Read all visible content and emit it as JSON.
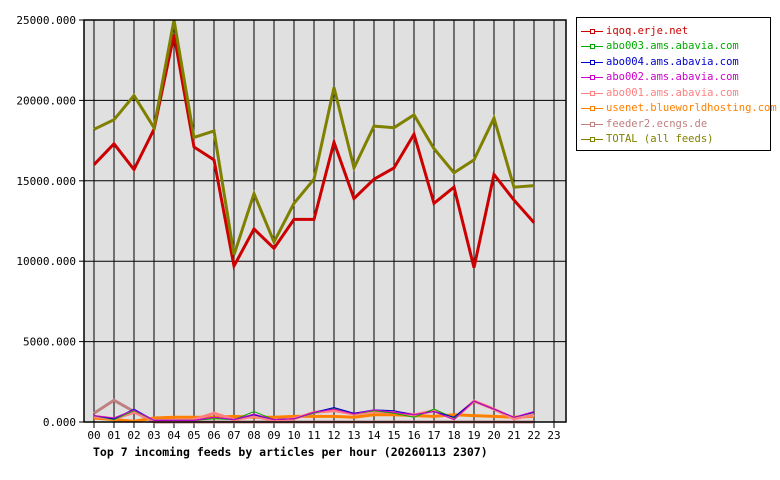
{
  "chart_data": {
    "type": "line",
    "title": "Top 7 incoming feeds by articles per hour (20260113 2307)",
    "xlabel": "",
    "ylabel": "",
    "ylim": [
      0,
      25000
    ],
    "yticks": [
      "0.000",
      "5000.000",
      "10000.000",
      "15000.000",
      "20000.000",
      "25000.000"
    ],
    "ytick_values": [
      0,
      5000,
      10000,
      15000,
      20000,
      25000
    ],
    "categories": [
      "00",
      "01",
      "02",
      "03",
      "04",
      "05",
      "06",
      "07",
      "08",
      "09",
      "10",
      "11",
      "12",
      "13",
      "14",
      "15",
      "16",
      "17",
      "18",
      "19",
      "20",
      "21",
      "22",
      "23"
    ],
    "grid": true,
    "legend_position": "right-top",
    "series": [
      {
        "name": "iqoq.erje.net",
        "color": "#cc0000",
        "width": 3,
        "values": [
          16000,
          17300,
          15700,
          18200,
          24100,
          17100,
          16300,
          9700,
          12000,
          10800,
          12600,
          12600,
          17400,
          13900,
          15100,
          15800,
          17900,
          13600,
          14600,
          9600,
          15400,
          13800,
          12400
        ]
      },
      {
        "name": "abo003.ams.abavia.com",
        "color": "#00aa00",
        "width": 1,
        "values": [
          400,
          150,
          700,
          100,
          100,
          100,
          200,
          150,
          650,
          150,
          200,
          550,
          850,
          500,
          700,
          550,
          300,
          800,
          250,
          1300,
          800,
          300,
          600
        ]
      },
      {
        "name": "abo004.ams.abavia.com",
        "color": "#0000cc",
        "width": 1,
        "values": [
          400,
          200,
          800,
          100,
          100,
          100,
          300,
          150,
          450,
          150,
          200,
          600,
          900,
          550,
          750,
          700,
          450,
          650,
          300,
          1300,
          800,
          300,
          600
        ]
      },
      {
        "name": "abo002.ams.abavia.com",
        "color": "#cc00cc",
        "width": 1,
        "values": [
          400,
          250,
          750,
          100,
          100,
          100,
          300,
          150,
          500,
          150,
          200,
          600,
          800,
          500,
          750,
          600,
          450,
          650,
          150,
          1300,
          800,
          300,
          650
        ]
      },
      {
        "name": "abo001.ams.abavia.com",
        "color": "#ff8080",
        "width": 3,
        "values": [
          350,
          200,
          600,
          100,
          100,
          150,
          550,
          150,
          350,
          100,
          200,
          600,
          700,
          500,
          650,
          600,
          450,
          700,
          200,
          1300,
          800,
          200,
          450
        ]
      },
      {
        "name": "usenet.blueworldhosting.com",
        "color": "#ff8000",
        "width": 3,
        "values": [
          250,
          150,
          50,
          250,
          300,
          300,
          300,
          350,
          300,
          300,
          350,
          350,
          350,
          300,
          450,
          450,
          400,
          350,
          450,
          400,
          350,
          300,
          350
        ]
      },
      {
        "name": "feeder2.ecngs.de",
        "color": "#c08080",
        "width": 3,
        "values": [
          550,
          1350,
          650,
          0,
          0,
          0,
          0,
          0,
          0,
          0,
          0,
          0,
          0,
          0,
          0,
          0,
          0,
          0,
          0,
          0,
          0,
          0,
          0
        ]
      },
      {
        "name": "TOTAL (all feeds)",
        "color": "#808000",
        "width": 3,
        "values": [
          18200,
          18800,
          20300,
          18300,
          25000,
          17700,
          18100,
          10400,
          14200,
          11200,
          13600,
          15100,
          20800,
          15800,
          18400,
          18300,
          19100,
          17000,
          15500,
          16300,
          18900,
          14600,
          14700
        ]
      }
    ]
  },
  "legend": {
    "items": [
      {
        "label": "iqoq.erje.net",
        "color": "#cc0000"
      },
      {
        "label": "abo003.ams.abavia.com",
        "color": "#00aa00"
      },
      {
        "label": "abo004.ams.abavia.com",
        "color": "#0000cc"
      },
      {
        "label": "abo002.ams.abavia.com",
        "color": "#cc00cc"
      },
      {
        "label": "abo001.ams.abavia.com",
        "color": "#ff8080"
      },
      {
        "label": "usenet.blueworldhosting.com",
        "color": "#ff8000"
      },
      {
        "label": "feeder2.ecngs.de",
        "color": "#c08080"
      },
      {
        "label": "TOTAL (all feeds)",
        "color": "#808000"
      }
    ]
  },
  "title": "Top 7 incoming feeds by articles per hour (20260113 2307)",
  "colors": {
    "plot_background": "#e0e0e0",
    "grid": "#000000",
    "page_background": "#ffffff"
  }
}
